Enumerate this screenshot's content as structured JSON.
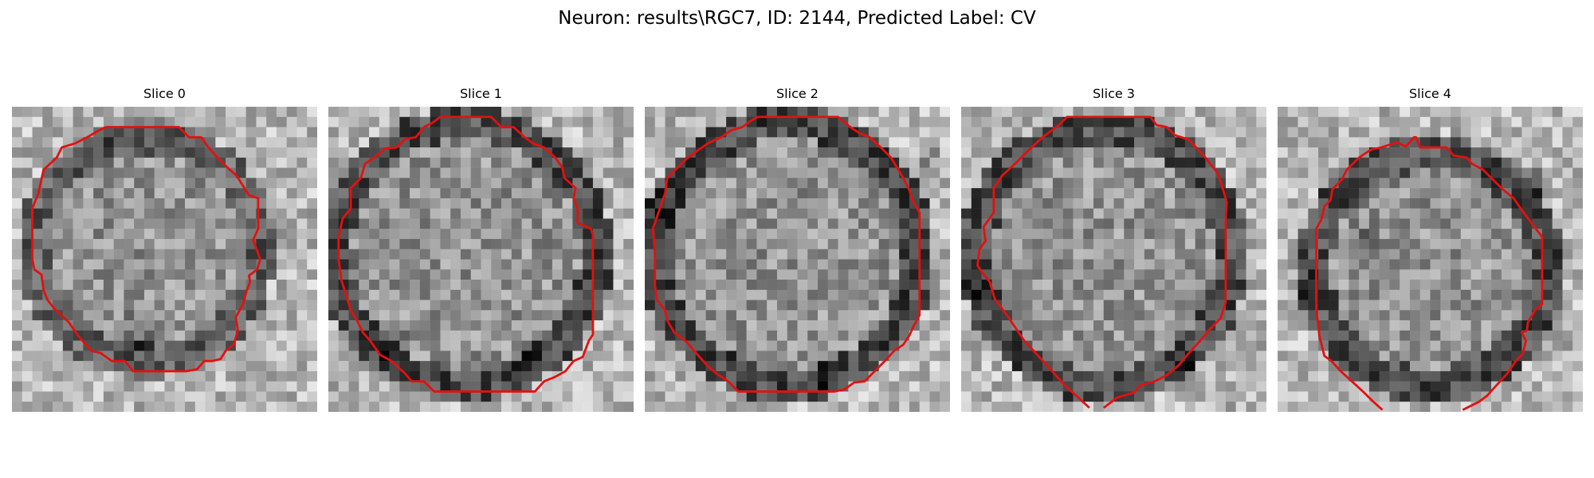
{
  "figure": {
    "title": "Neuron: results\\RGC7, ID: 2144, Predicted Label: CV"
  },
  "colors": {
    "contour": "#e41010",
    "image_colormap": "gray"
  },
  "slices": [
    {
      "label": "Slice 0"
    },
    {
      "label": "Slice 1"
    },
    {
      "label": "Slice 2"
    },
    {
      "label": "Slice 3"
    },
    {
      "label": "Slice 4"
    }
  ]
}
